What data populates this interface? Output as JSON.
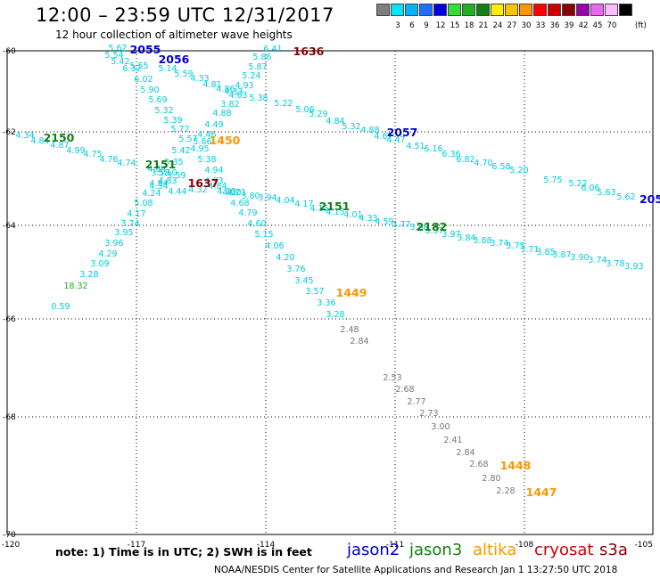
{
  "header": {
    "title": "12:00 – 23:59 UTC 12/31/2017",
    "subtitle": "12 hour collection of altimeter wave heights"
  },
  "legend": {
    "unit": "(ft)",
    "swatches": [
      {
        "color": "#7f7f7f",
        "label": ""
      },
      {
        "color": "#00e5ff",
        "label": "3"
      },
      {
        "color": "#00b3ff",
        "label": "6"
      },
      {
        "color": "#1f6fff",
        "label": "9"
      },
      {
        "color": "#0000e0",
        "label": "12"
      },
      {
        "color": "#33dd33",
        "label": "15"
      },
      {
        "color": "#22b022",
        "label": "18"
      },
      {
        "color": "#118011",
        "label": "21"
      },
      {
        "color": "#ffee00",
        "label": "24"
      },
      {
        "color": "#ffc400",
        "label": "27"
      },
      {
        "color": "#ff9500",
        "label": "30"
      },
      {
        "color": "#ff0000",
        "label": "33"
      },
      {
        "color": "#cc0000",
        "label": "36"
      },
      {
        "color": "#880000",
        "label": "39"
      },
      {
        "color": "#9900aa",
        "label": "42"
      },
      {
        "color": "#ee66ee",
        "label": "45"
      },
      {
        "color": "#ffbbff",
        "label": "70"
      },
      {
        "color": "#000000",
        "label": ""
      }
    ]
  },
  "map": {
    "lon_ticks": [
      "-120",
      "-117",
      "-114",
      "-111",
      "-108",
      "-105"
    ],
    "lat_ticks": [
      "-60",
      "-62",
      "-64",
      "-66",
      "-68",
      "-70"
    ],
    "tracks": [
      {
        "pass": "2055",
        "satellite": "jason2",
        "values": [
          "5.62",
          "5.54",
          "5.42",
          "6.32",
          "6.02",
          "5.90",
          "5.69",
          "5.32",
          "5.39",
          "5.72",
          "5.57",
          "5.42",
          "5.35",
          "5.10",
          "4.84",
          "4.24",
          "5.08",
          "4.17",
          "3.74",
          "3.95",
          "3.96",
          "4.29",
          "3.09",
          "3.28",
          "18.32",
          "0.59"
        ]
      },
      {
        "pass": "2056",
        "satellite": "jason2",
        "values": [
          "5.55",
          "5.14",
          "5.59",
          "4.33",
          "4.81",
          "4.86",
          "4.63",
          "5.38",
          "5.22",
          "5.06",
          "5.29",
          "4.84",
          "5.32",
          "4.88",
          "4.67",
          "4.47",
          "4.51",
          "6.16",
          "6.36",
          "6.82",
          "4.70",
          "6.58",
          "5.20",
          "5.75",
          "5.22",
          "6.06",
          "5.63",
          "5.62"
        ]
      },
      {
        "pass": "1636",
        "satellite": "cryosat",
        "values": [
          "6.41",
          "5.86",
          "5.87",
          "5.24",
          "4.93",
          "4.33",
          "3.82",
          "4.88",
          "4.49",
          "4.46",
          "5.66",
          "4.95",
          "5.38",
          "4.94",
          "4.93",
          "4.84",
          "4.30",
          "4.23",
          "4.68",
          "4.79",
          "4.60",
          "5.15",
          "4.06",
          "4.20",
          "3.76",
          "3.45",
          "3.57",
          "3.36",
          "3.28"
        ]
      },
      {
        "pass": "2150",
        "satellite": "jason3",
        "values": [
          "4.34",
          "4.84",
          "4.87",
          "4.99",
          "4.75",
          "4.76",
          "4.74",
          "4.64",
          "3.58",
          "3.59",
          "4.83",
          "4.34",
          "4.44",
          "4.32",
          "4.30",
          "3.80",
          "3.94",
          "4.04",
          "4.17",
          "4.15",
          "4.15",
          "4.01",
          "4.33",
          "4.59",
          "3.77",
          "3.88",
          "3.97",
          "3.97",
          "3.84",
          "3.88",
          "3.74",
          "3.75",
          "3.71",
          "3.85",
          "3.87",
          "3.90",
          "3.74",
          "3.78",
          "3.93"
        ]
      },
      {
        "pass": "1449",
        "satellite": "altika",
        "values": [
          "2.48",
          "2.84"
        ]
      },
      {
        "pass": "1448",
        "satellite": "altika",
        "values": [
          "2.53",
          "2.68",
          "2.77",
          "2.73",
          "3.00",
          "2.41",
          "2.84",
          "2.68",
          "2.80",
          "2.28"
        ]
      }
    ],
    "pass_labels": [
      {
        "text": "2055",
        "color": "#0000cc"
      },
      {
        "text": "2056",
        "color": "#0000cc"
      },
      {
        "text": "1636",
        "color": "#880000"
      },
      {
        "text": "2057",
        "color": "#0000cc"
      },
      {
        "text": "2150",
        "color": "#118011"
      },
      {
        "text": "1450",
        "color": "#ff9500"
      },
      {
        "text": "2151",
        "color": "#118011"
      },
      {
        "text": "1637",
        "color": "#880000"
      },
      {
        "text": "2151",
        "color": "#118011"
      },
      {
        "text": "2182",
        "color": "#118011"
      },
      {
        "text": "1449",
        "color": "#ff9500"
      },
      {
        "text": "1448",
        "color": "#ff9500"
      },
      {
        "text": "1447",
        "color": "#ff9500"
      },
      {
        "text": "205",
        "color": "#0000cc"
      }
    ]
  },
  "footer": {
    "note": "note: 1) Time is in UTC; 2) SWH is in feet",
    "satellites": [
      {
        "name": "jason2",
        "color": "#0000cc"
      },
      {
        "name": "jason3",
        "color": "#118011"
      },
      {
        "name": "altika",
        "color": "#ff9500"
      },
      {
        "name": "cryosat",
        "color": "#cc0000"
      },
      {
        "name": "s3a",
        "color": "#880000"
      }
    ],
    "credit": "NOAA/NESDIS Center for Satellite Applications and Research    Jan  1 13:27:50 UTC 2018"
  }
}
